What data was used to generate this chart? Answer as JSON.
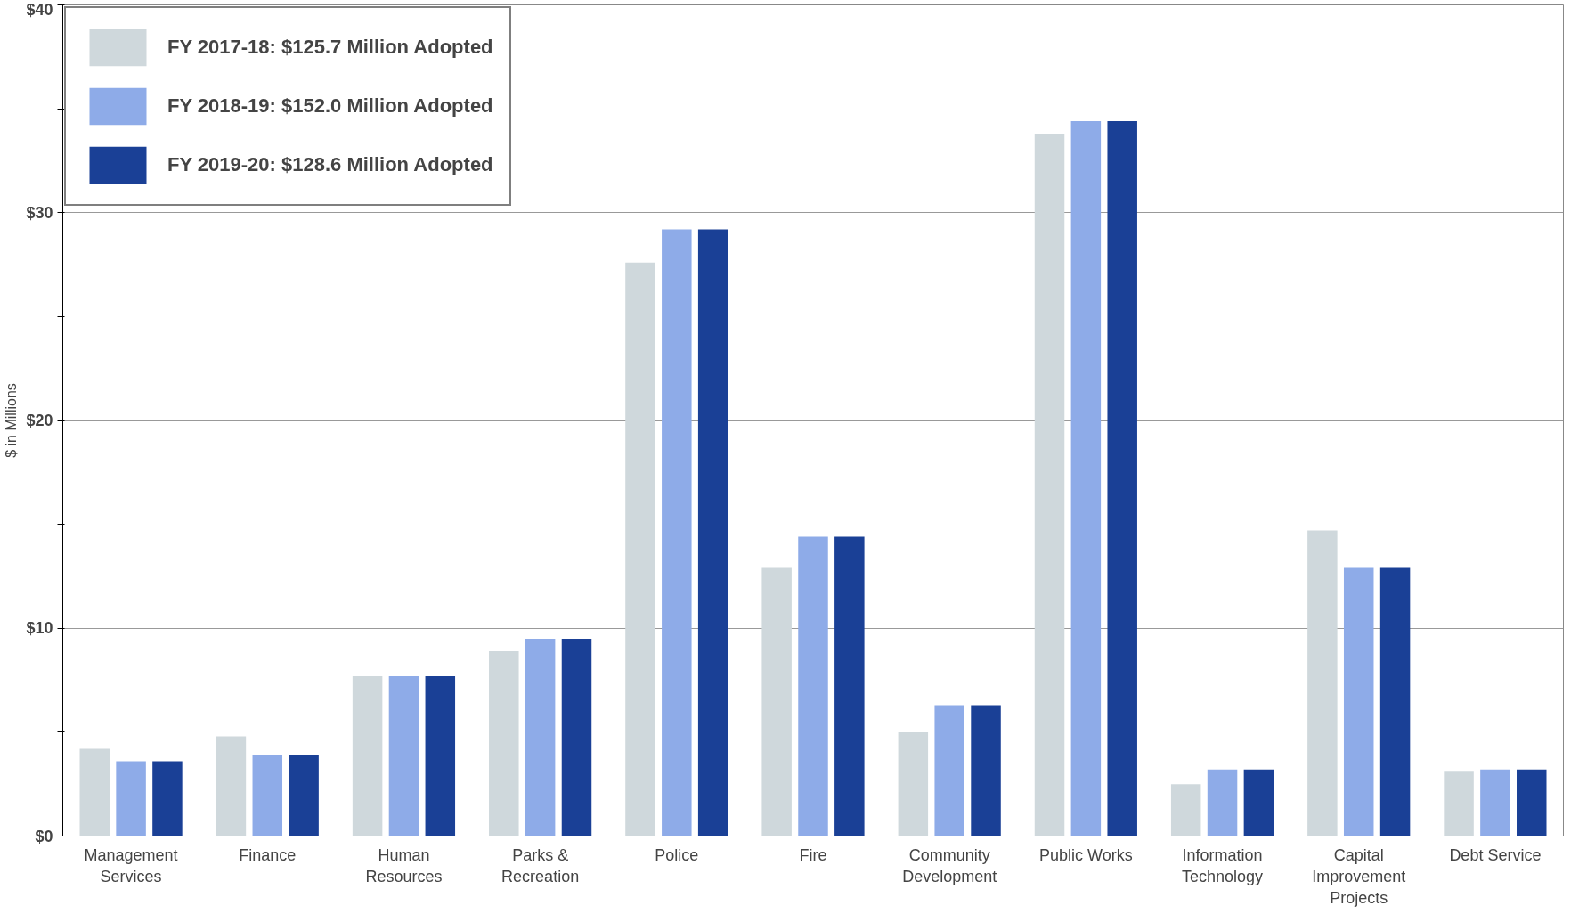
{
  "chart_data": {
    "type": "bar",
    "ylabel": "$ in Millions",
    "categories": [
      "Management Services",
      "Finance",
      "Human Resources",
      "Parks & Recreation",
      "Police",
      "Fire",
      "Community Development",
      "Public Works",
      "Information Technology",
      "Capital Improvement Projects",
      "Debt Service"
    ],
    "series": [
      {
        "name": "FY 2017-18: $125.7 Million Adopted",
        "color": "#cfd8dc",
        "values": [
          4.2,
          4.8,
          7.7,
          8.9,
          27.6,
          12.9,
          5.0,
          33.8,
          2.5,
          14.7,
          3.1
        ]
      },
      {
        "name": "FY 2018-19: $152.0 Million Adopted",
        "color": "#8eabe8",
        "values": [
          3.6,
          3.9,
          7.7,
          9.5,
          29.2,
          14.4,
          6.3,
          34.4,
          3.2,
          12.9,
          3.2
        ]
      },
      {
        "name": "FY 2019-20: $128.6 Million Adopted",
        "color": "#1a4096",
        "values": [
          3.6,
          3.9,
          7.7,
          9.5,
          29.2,
          14.4,
          6.3,
          34.4,
          3.2,
          12.9,
          3.2
        ]
      }
    ],
    "ylim": [
      0,
      40
    ],
    "yticks": [
      {
        "value": 0,
        "label": "$0"
      },
      {
        "value": 5,
        "label": null
      },
      {
        "value": 10,
        "label": "$10"
      },
      {
        "value": 15,
        "label": null
      },
      {
        "value": 20,
        "label": "$20"
      },
      {
        "value": 25,
        "label": null
      },
      {
        "value": 30,
        "label": "$30"
      },
      {
        "value": 35,
        "label": null
      },
      {
        "value": 40,
        "label": "$40"
      }
    ],
    "grid": "y",
    "legend": "top left"
  }
}
